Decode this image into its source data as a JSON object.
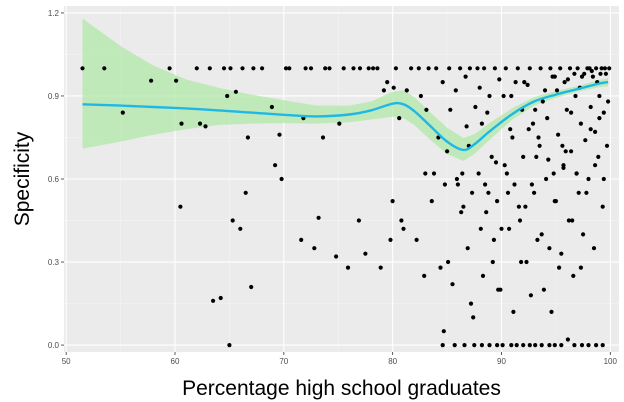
{
  "chart_data": {
    "type": "scatter",
    "title": "",
    "xlabel": "Percentage high school graduates",
    "ylabel": "Specificity",
    "xlim": [
      49.8,
      100.8
    ],
    "ylim": [
      -0.025,
      1.225
    ],
    "x_ticks": [
      50,
      60,
      70,
      80,
      90,
      100
    ],
    "y_ticks": [
      0.0,
      0.3,
      0.6,
      0.9,
      1.2
    ],
    "y_tick_labels": [
      "0.0",
      "0.3",
      "0.6",
      "0.9",
      "1.2"
    ],
    "grid": true,
    "legend": "none",
    "colors": {
      "panel": "#ebebeb",
      "grid_major": "#ffffff",
      "grid_minor": "#f3f3f3",
      "points": "#000000",
      "smooth_line": "#1fb8e6",
      "ribbon": "#b2e8a8"
    },
    "smooth": {
      "x": [
        51.5,
        55,
        58,
        61,
        64,
        67,
        70,
        73,
        76,
        78,
        80,
        81,
        82,
        83.5,
        85,
        86.5,
        87.5,
        89,
        91,
        93,
        95,
        97,
        99,
        99.8
      ],
      "y": [
        0.87,
        0.865,
        0.86,
        0.855,
        0.848,
        0.84,
        0.832,
        0.826,
        0.833,
        0.848,
        0.872,
        0.87,
        0.845,
        0.79,
        0.735,
        0.705,
        0.725,
        0.775,
        0.835,
        0.88,
        0.905,
        0.925,
        0.945,
        0.95
      ],
      "ci_lower": [
        0.71,
        0.735,
        0.76,
        0.78,
        0.795,
        0.8,
        0.802,
        0.8,
        0.805,
        0.815,
        0.825,
        0.82,
        0.795,
        0.74,
        0.69,
        0.665,
        0.69,
        0.745,
        0.815,
        0.865,
        0.893,
        0.915,
        0.932,
        0.935
      ],
      "ci_upper": [
        1.18,
        1.08,
        1.01,
        0.96,
        0.93,
        0.905,
        0.885,
        0.865,
        0.865,
        0.88,
        0.915,
        0.92,
        0.895,
        0.84,
        0.785,
        0.748,
        0.762,
        0.805,
        0.856,
        0.896,
        0.918,
        0.936,
        0.958,
        0.965
      ]
    },
    "points": {
      "x": [
        51.5,
        55.2,
        57.8,
        60.1,
        60.6,
        62.3,
        62.8,
        63.2,
        64.8,
        65.1,
        65.6,
        66.7,
        67.2,
        68.9,
        69.6,
        70.2,
        71.8,
        72.5,
        73.6,
        74.2,
        75.1,
        76.4,
        77.8,
        78.6,
        79.2,
        80.1,
        80.6,
        81.3,
        82.4,
        83.1,
        83.8,
        84.2,
        84.8,
        85.3,
        85.9,
        86.4,
        86.8,
        87.3,
        87.8,
        88.2,
        88.7,
        89.1,
        89.6,
        90.2,
        90.8,
        91.3,
        91.9,
        92.4,
        92.9,
        93.4,
        93.8,
        94.3,
        94.7,
        95.1,
        95.6,
        96.1,
        96.4,
        96.8,
        97.2,
        97.6,
        98.1,
        98.4,
        98.8,
        99.2,
        99.6,
        99.9,
        53.5,
        59.5,
        62.0,
        64.5,
        66.2,
        68.0,
        70.5,
        72.0,
        73.8,
        75.5,
        77.0,
        78.2,
        79.5,
        80.3,
        81.7,
        82.6,
        83.3,
        84.0,
        84.6,
        85.2,
        85.8,
        86.2,
        86.7,
        87.1,
        87.6,
        88.0,
        88.4,
        88.9,
        89.4,
        89.8,
        90.4,
        90.9,
        91.5,
        92.1,
        92.6,
        93.1,
        93.6,
        94.0,
        94.5,
        94.9,
        95.4,
        95.8,
        96.3,
        96.7,
        97.0,
        97.4,
        97.9,
        98.3,
        98.7,
        99.1,
        99.5,
        60.5,
        64.2,
        65.0,
        66.5,
        69.8,
        71.6,
        74.8,
        76.9,
        78.9,
        80.8,
        82.2,
        83.6,
        84.4,
        85.5,
        86.0,
        86.9,
        87.4,
        88.1,
        88.6,
        89.2,
        89.9,
        90.6,
        91.1,
        91.7,
        92.3,
        92.8,
        93.3,
        93.9,
        94.4,
        94.8,
        95.3,
        95.7,
        96.2,
        96.6,
        97.1,
        97.5,
        98.0,
        98.5,
        98.9,
        99.3,
        99.7,
        63.5,
        65.3,
        67.0,
        72.8,
        75.9,
        79.8,
        81.0,
        82.9,
        84.7,
        85.1,
        86.3,
        87.2,
        87.9,
        88.3,
        88.8,
        89.3,
        89.7,
        90.3,
        90.7,
        91.2,
        91.8,
        92.2,
        92.7,
        93.2,
        93.7,
        94.1,
        94.6,
        95.0,
        95.5,
        95.9,
        96.5,
        96.9,
        97.3,
        97.8,
        98.2,
        98.6,
        99.0,
        99.4,
        99.8,
        66.0,
        69.2,
        73.2,
        77.5,
        80.0,
        83.0,
        85.0,
        86.5,
        87.0,
        88.5,
        89.5,
        90.0,
        90.5,
        91.0,
        91.6,
        92.0,
        92.5,
        93.0,
        93.5,
        94.2,
        94.9,
        95.2,
        95.7,
        96.0,
        96.4,
        96.9,
        97.3,
        97.7,
        98.2,
        98.6,
        99.0,
        99.4,
        84.6,
        85.7,
        86.6,
        87.5,
        88.2,
        88.9,
        89.6,
        90.1,
        90.9,
        91.4,
        92.0,
        92.6,
        93.1,
        93.7,
        94.4,
        94.9,
        95.5,
        96.1,
        96.7,
        97.4,
        98.0,
        98.7,
        99.3
      ],
      "y": [
        1.0,
        0.84,
        0.955,
        0.955,
        0.8,
        0.8,
        0.79,
        1.0,
        0.9,
        1.0,
        0.915,
        0.75,
        1.0,
        0.86,
        0.76,
        1.0,
        0.82,
        1.0,
        0.75,
        1.0,
        0.8,
        1.0,
        1.0,
        1.0,
        0.92,
        0.93,
        0.82,
        0.92,
        1.0,
        0.85,
        0.62,
        0.75,
        0.58,
        0.85,
        0.6,
        0.62,
        0.79,
        0.55,
        1.0,
        0.8,
        0.84,
        0.68,
        0.52,
        0.9,
        0.78,
        0.95,
        0.85,
        0.94,
        0.8,
        0.75,
        0.88,
        0.67,
        0.97,
        0.92,
        0.72,
        0.96,
        0.84,
        0.9,
        0.93,
        0.98,
        1.0,
        0.97,
        0.95,
        1.0,
        0.98,
        1.0,
        1.0,
        1.0,
        1.0,
        1.0,
        1.0,
        1.0,
        1.0,
        1.0,
        1.0,
        1.0,
        1.0,
        1.0,
        0.95,
        1.0,
        1.0,
        0.9,
        1.0,
        1.0,
        0.95,
        1.0,
        0.92,
        1.0,
        0.97,
        1.0,
        0.86,
        0.93,
        1.0,
        0.9,
        1.0,
        0.96,
        1.0,
        0.9,
        1.0,
        0.95,
        1.0,
        0.85,
        1.0,
        0.92,
        1.0,
        0.97,
        1.0,
        0.95,
        1.0,
        0.98,
        1.0,
        0.97,
        1.0,
        0.99,
        1.0,
        0.98,
        1.0,
        0.5,
        0.17,
        0.0,
        0.55,
        0.6,
        0.38,
        0.32,
        0.45,
        0.28,
        0.45,
        0.38,
        0.52,
        0.28,
        0.22,
        0.58,
        0.35,
        0.1,
        0.42,
        0.48,
        0.3,
        0.2,
        0.55,
        0.12,
        0.45,
        0.3,
        0.58,
        0.38,
        0.2,
        0.35,
        0.62,
        0.28,
        0.65,
        0.45,
        0.25,
        0.55,
        0.4,
        0.6,
        0.35,
        0.68,
        0.5,
        0.72,
        0.16,
        0.45,
        0.21,
        0.35,
        0.28,
        0.38,
        0.42,
        0.25,
        0.05,
        0.3,
        0.48,
        0.15,
        0.62,
        0.25,
        0.55,
        0.38,
        0.2,
        0.65,
        0.42,
        0.58,
        0.3,
        0.5,
        0.18,
        0.68,
        0.4,
        0.6,
        0.12,
        0.52,
        0.33,
        0.7,
        0.45,
        0.62,
        0.28,
        0.55,
        0.78,
        0.65,
        0.82,
        0.6,
        0.88,
        0.42,
        0.65,
        0.46,
        0.33,
        0.52,
        0.62,
        0.7,
        0.5,
        0.72,
        0.58,
        0.66,
        0.42,
        0.62,
        0.75,
        0.5,
        0.68,
        0.78,
        0.55,
        0.72,
        0.82,
        0.52,
        0.76,
        0.64,
        0.85,
        0.7,
        0.62,
        0.8,
        0.74,
        0.86,
        0.77,
        0.9,
        0.84,
        0.0,
        0.0,
        0.0,
        0.0,
        0.0,
        0.0,
        0.0,
        0.0,
        0.0,
        0.0,
        0.0,
        0.0,
        0.0,
        0.0,
        0.0,
        0.0,
        0.0,
        0.02,
        0.0,
        0.0,
        0.0,
        0.0,
        0.0
      ]
    }
  }
}
